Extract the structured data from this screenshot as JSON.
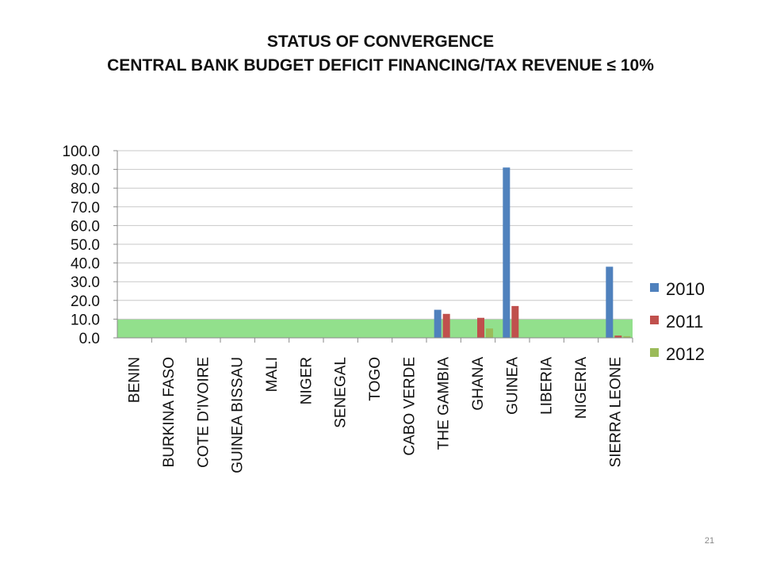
{
  "slide": {
    "title": "STATUS OF CONVERGENCE",
    "subtitle": "CENTRAL BANK BUDGET DEFICIT FINANCING/TAX REVENUE  ≤ 10%",
    "page_number": "21"
  },
  "colors": {
    "2010": "#4f81bd",
    "2011": "#c0504d",
    "2012": "#9bbb59",
    "threshold_band": "#92e08c",
    "grid": "#c8c8c8"
  },
  "chart_data": {
    "type": "bar",
    "title": "",
    "xlabel": "",
    "ylabel": "",
    "ylim": [
      0,
      100
    ],
    "yticks": [
      "0.0",
      "10.0",
      "20.0",
      "30.0",
      "40.0",
      "50.0",
      "60.0",
      "70.0",
      "80.0",
      "90.0",
      "100.0"
    ],
    "grid": true,
    "legend_position": "right",
    "threshold": 10,
    "categories": [
      "BENIN",
      "BURKINA FASO",
      "COTE D'IVOIRE",
      "GUINEA BISSAU",
      "MALI",
      "NIGER",
      "SENEGAL",
      "TOGO",
      "CABO VERDE",
      "THE GAMBIA",
      "GHANA",
      "GUINEA",
      "LIBERIA",
      "NIGERIA",
      "SIERRA LEONE"
    ],
    "series": [
      {
        "name": "2010",
        "values": [
          0,
          0,
          0,
          0,
          0,
          0,
          0,
          0,
          0,
          15.0,
          0,
          91.0,
          0,
          0,
          38.0
        ]
      },
      {
        "name": "2011",
        "values": [
          0,
          0,
          0,
          0,
          0,
          0,
          0,
          0,
          0,
          12.8,
          10.7,
          17.0,
          0,
          0,
          1.2
        ]
      },
      {
        "name": "2012",
        "values": [
          0,
          0,
          0,
          0,
          0,
          0,
          0,
          0,
          0,
          0,
          5.0,
          0,
          0,
          0,
          0.9
        ]
      }
    ]
  }
}
